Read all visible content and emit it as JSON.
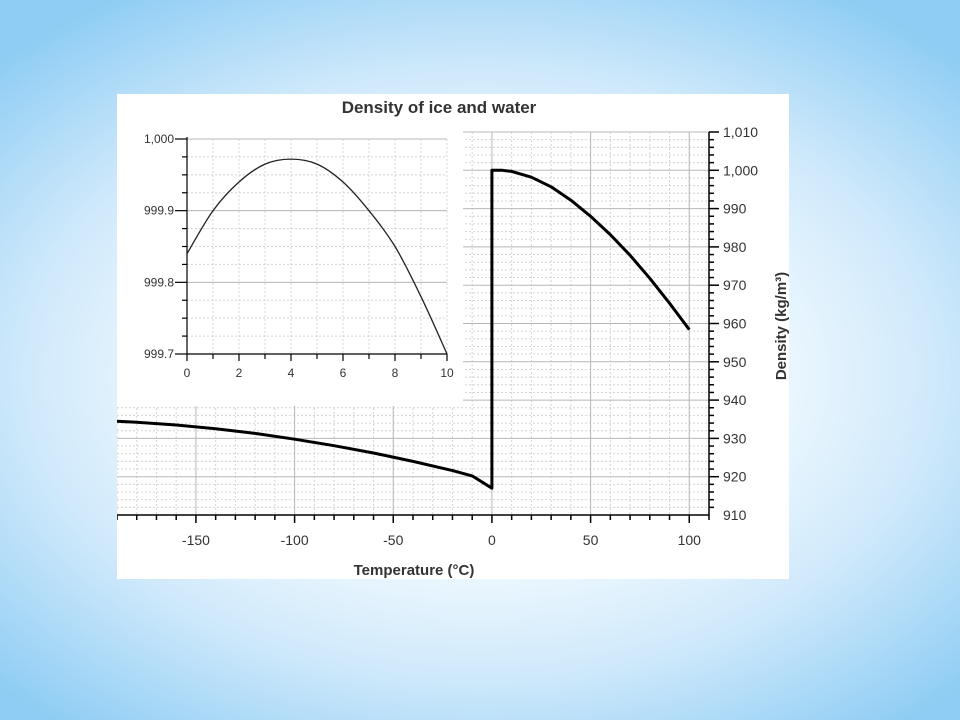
{
  "slide": {
    "colors": {
      "background_edge": "#8fcdf4",
      "background_center": "#ffffff",
      "card": "#ffffff"
    }
  },
  "chart_data": [
    {
      "type": "line",
      "title": "Density of ice and water",
      "xlabel": "Temperature (°C)",
      "ylabel": "Density (kg/m³)",
      "xlim": [
        -190,
        110
      ],
      "ylim": [
        910,
        1010
      ],
      "x_ticks": [
        -150,
        -100,
        -50,
        0,
        50,
        100
      ],
      "x_tick_labels": [
        "-150",
        "-100",
        "-50",
        "0",
        "50",
        "100"
      ],
      "y_ticks": [
        910,
        920,
        930,
        940,
        950,
        960,
        970,
        980,
        990,
        1000,
        1010
      ],
      "y_tick_labels": [
        "910",
        "920",
        "930",
        "940",
        "950",
        "960",
        "970",
        "980",
        "990",
        "1,000",
        "1,010"
      ],
      "y_axis_side": "right",
      "grid": true,
      "line_color": "#000000",
      "series": [
        {
          "x": [
            -190,
            -180,
            -160,
            -140,
            -120,
            -100,
            -80,
            -60,
            -40,
            -20,
            -10,
            0,
            0,
            5,
            10,
            20,
            30,
            40,
            50,
            60,
            70,
            80,
            90,
            100
          ],
          "y": [
            934.5,
            934.2,
            933.5,
            932.5,
            931.3,
            929.8,
            928.1,
            926.2,
            924.0,
            921.6,
            920.2,
            917,
            1000,
            1000,
            999.7,
            998.2,
            995.7,
            992.2,
            988.0,
            983.2,
            977.8,
            971.8,
            965.3,
            958.4
          ]
        }
      ]
    },
    {
      "type": "line",
      "inset": true,
      "xlim": [
        0,
        10
      ],
      "ylim": [
        999.7,
        1000
      ],
      "x_ticks": [
        0,
        2,
        4,
        6,
        8,
        10
      ],
      "x_tick_labels": [
        "0",
        "2",
        "4",
        "6",
        "8",
        "10"
      ],
      "y_ticks": [
        999.7,
        999.8,
        999.9,
        1000
      ],
      "y_tick_labels": [
        "999.7",
        "999.8",
        "999.9",
        "1,000"
      ],
      "grid": true,
      "line_color": "#222222",
      "series": [
        {
          "x": [
            0,
            1,
            2,
            3,
            4,
            5,
            6,
            7,
            8,
            9,
            10
          ],
          "y": [
            999.84,
            999.9,
            999.94,
            999.965,
            999.972,
            999.965,
            999.94,
            999.9,
            999.85,
            999.78,
            999.7
          ]
        }
      ]
    }
  ]
}
